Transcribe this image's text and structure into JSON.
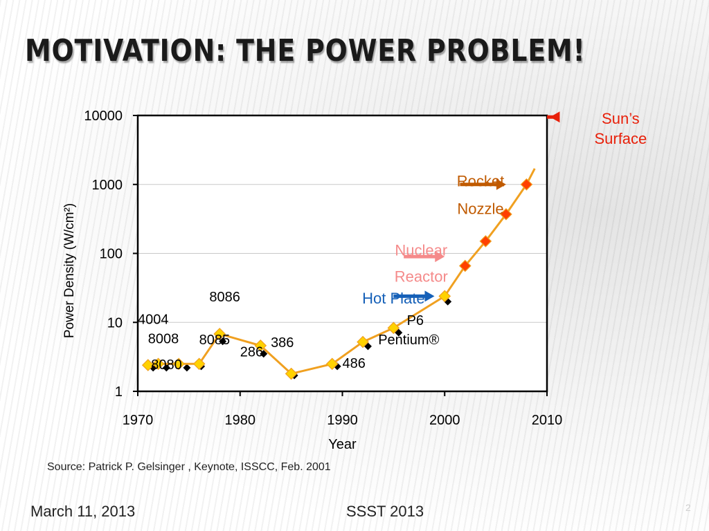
{
  "slide": {
    "title": "Motivation: The Power Problem!",
    "source": "Source: Patrick P. Gelsinger , Keynote, ISSCC, Feb. 2001",
    "footer_date": "March 11, 2013",
    "footer_conference": "SSST 2013",
    "slide_number": "2"
  },
  "chart_data": {
    "type": "line",
    "title": "",
    "xlabel": "Year",
    "ylabel": "Power Density (W/cm²)",
    "xlim": [
      1970,
      2010
    ],
    "ylim": [
      1,
      10000
    ],
    "yscale": "log",
    "x_ticks": [
      1970,
      1980,
      1990,
      2000,
      2010
    ],
    "y_ticks": [
      {
        "value": 1,
        "label": "1"
      },
      {
        "value": 10,
        "label": "10"
      },
      {
        "value": 100,
        "label": "100"
      },
      {
        "value": 1000,
        "label": "1000"
      },
      {
        "value": 10000,
        "label": "10000"
      }
    ],
    "grid": "horizontal",
    "series": [
      {
        "color": "#f0a020",
        "points": [
          {
            "x": 1971,
            "y": 2.4,
            "marker": "#ffd200"
          },
          {
            "x": 1972,
            "y": 2.5,
            "marker": "#ffd200"
          },
          {
            "x": 1974,
            "y": 2.5,
            "marker": "#ffd200"
          },
          {
            "x": 1976,
            "y": 2.5,
            "marker": "#ffd200"
          },
          {
            "x": 1978,
            "y": 6.8,
            "marker": "#ffd200"
          },
          {
            "x": 1982,
            "y": 4.6,
            "marker": "#ffd200"
          },
          {
            "x": 1985,
            "y": 1.8,
            "marker": "#ffd200"
          },
          {
            "x": 1989,
            "y": 2.5,
            "marker": "#ffd200"
          },
          {
            "x": 1992,
            "y": 5.2,
            "marker": "#ffd200"
          },
          {
            "x": 1995,
            "y": 8.3,
            "marker": "#ffd200"
          },
          {
            "x": 2000,
            "y": 24,
            "marker": "#ffd200"
          },
          {
            "x": 2002,
            "y": 66,
            "marker": "#ff4000"
          },
          {
            "x": 2004,
            "y": 150,
            "marker": "#ff4000"
          },
          {
            "x": 2006,
            "y": 370,
            "marker": "#ff4000"
          },
          {
            "x": 2008,
            "y": 1000,
            "marker": "#ff4000"
          }
        ],
        "trend_end": {
          "x": 2008.8,
          "y": 1700
        }
      }
    ],
    "black_points": [
      {
        "x": 1971.5,
        "y": 2.2
      },
      {
        "x": 1972.8,
        "y": 2.2
      },
      {
        "x": 1974.8,
        "y": 2.2
      },
      {
        "x": 1976.2,
        "y": 2.3
      },
      {
        "x": 1978.3,
        "y": 5.3
      },
      {
        "x": 1982.3,
        "y": 3.5
      },
      {
        "x": 1985.3,
        "y": 1.7
      },
      {
        "x": 1989.5,
        "y": 2.3
      },
      {
        "x": 1992.5,
        "y": 4.5
      },
      {
        "x": 1995.5,
        "y": 7.1
      },
      {
        "x": 2000.3,
        "y": 20
      }
    ],
    "point_labels": [
      {
        "text": "4004",
        "x": 1970,
        "y": 9.5
      },
      {
        "text": "8008",
        "x": 1971,
        "y": 5.0
      },
      {
        "text": "8080",
        "x": 1971.3,
        "y": 2.1
      },
      {
        "text": "8085",
        "x": 1976,
        "y": 4.8
      },
      {
        "text": "8086",
        "x": 1977,
        "y": 20
      },
      {
        "text": "286",
        "x": 1980,
        "y": 3.2
      },
      {
        "text": "386",
        "x": 1983,
        "y": 4.4
      },
      {
        "text": "486",
        "x": 1990,
        "y": 2.2
      },
      {
        "text": "P6",
        "x": 1996.3,
        "y": 9.2
      },
      {
        "text": "Pentium®",
        "x": 1993.5,
        "y": 4.8
      }
    ],
    "annotations": [
      {
        "lines": [
          "Sun’s",
          "Surface"
        ],
        "color": "#e8200a",
        "text_x": 2017.2,
        "text_y": 8900,
        "line_gap": 1.95,
        "arrow": {
          "from_x": 2005.5,
          "to_x": 2010.3,
          "y": 9500,
          "direction": "left"
        }
      },
      {
        "lines": [
          "Rocket",
          "Nozzle"
        ],
        "color": "#c05a00",
        "text_x": 2003.5,
        "text_y": 1100,
        "line_gap": 2.5,
        "arrow": {
          "from_x": 2001.5,
          "to_x": 2006,
          "y": 1000,
          "direction": "right"
        }
      },
      {
        "lines": [
          "Nuclear",
          "Reactor"
        ],
        "color": "#f58a8a",
        "text_x": 1997.7,
        "text_y": 110,
        "line_gap": 2.4,
        "arrow": {
          "from_x": 1996,
          "to_x": 2000,
          "y": 90,
          "direction": "right"
        }
      },
      {
        "lines": [
          "Hot Plate"
        ],
        "color": "#1560b8",
        "text_x": 1995,
        "text_y": 22,
        "line_gap": 1,
        "arrow": {
          "from_x": 1995,
          "to_x": 1999,
          "y": 24,
          "direction": "right"
        }
      }
    ]
  }
}
